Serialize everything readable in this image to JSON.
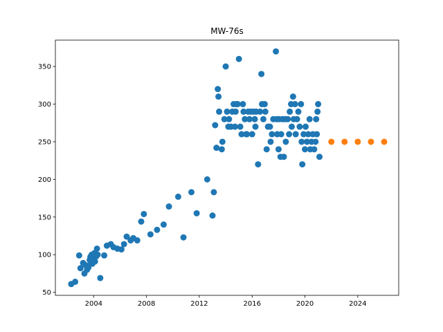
{
  "chart_data": {
    "type": "scatter",
    "title": "MW-76s",
    "xlabel": "",
    "ylabel": "",
    "xlim": [
      2001.1,
      2027.1
    ],
    "ylim": [
      46,
      385
    ],
    "x_ticks": [
      2004,
      2008,
      2012,
      2016,
      2020,
      2024
    ],
    "y_ticks": [
      50,
      100,
      150,
      200,
      250,
      300,
      350
    ],
    "grid": false,
    "legend": "none",
    "series": [
      {
        "color": "#1f77b4",
        "points": [
          [
            2002.3,
            61
          ],
          [
            2002.6,
            64
          ],
          [
            2002.9,
            99
          ],
          [
            2003.0,
            82
          ],
          [
            2003.2,
            89
          ],
          [
            2003.3,
            75
          ],
          [
            2003.4,
            86
          ],
          [
            2003.5,
            80
          ],
          [
            2003.6,
            83
          ],
          [
            2003.7,
            93
          ],
          [
            2003.75,
            97
          ],
          [
            2003.8,
            90
          ],
          [
            2003.85,
            100
          ],
          [
            2003.9,
            88
          ],
          [
            2004.0,
            95
          ],
          [
            2004.05,
            102
          ],
          [
            2004.1,
            91
          ],
          [
            2004.2,
            98
          ],
          [
            2004.25,
            108
          ],
          [
            2004.3,
            100
          ],
          [
            2004.5,
            69
          ],
          [
            2004.8,
            99
          ],
          [
            2005.0,
            112
          ],
          [
            2005.3,
            114
          ],
          [
            2005.5,
            110
          ],
          [
            2005.8,
            108
          ],
          [
            2006.1,
            107
          ],
          [
            2006.3,
            114
          ],
          [
            2006.5,
            124
          ],
          [
            2006.8,
            119
          ],
          [
            2007.0,
            122
          ],
          [
            2007.3,
            119
          ],
          [
            2007.6,
            144
          ],
          [
            2007.8,
            154
          ],
          [
            2008.3,
            127
          ],
          [
            2008.8,
            133
          ],
          [
            2009.3,
            140
          ],
          [
            2009.7,
            164
          ],
          [
            2010.4,
            177
          ],
          [
            2010.8,
            123
          ],
          [
            2011.4,
            183
          ],
          [
            2011.8,
            155
          ],
          [
            2012.6,
            200
          ],
          [
            2013.0,
            152
          ],
          [
            2013.1,
            183
          ],
          [
            2013.2,
            272
          ],
          [
            2013.3,
            242
          ],
          [
            2013.4,
            320
          ],
          [
            2013.45,
            310
          ],
          [
            2013.5,
            290
          ],
          [
            2013.7,
            240
          ],
          [
            2013.75,
            250
          ],
          [
            2013.9,
            280
          ],
          [
            2014.0,
            350
          ],
          [
            2014.1,
            290
          ],
          [
            2014.2,
            270
          ],
          [
            2014.25,
            280
          ],
          [
            2014.4,
            270
          ],
          [
            2014.5,
            290
          ],
          [
            2014.6,
            300
          ],
          [
            2014.7,
            270
          ],
          [
            2014.75,
            290
          ],
          [
            2014.8,
            300
          ],
          [
            2014.9,
            300
          ],
          [
            2015.0,
            360
          ],
          [
            2015.1,
            270
          ],
          [
            2015.2,
            260
          ],
          [
            2015.3,
            300
          ],
          [
            2015.35,
            290
          ],
          [
            2015.45,
            280
          ],
          [
            2015.55,
            260
          ],
          [
            2015.6,
            260
          ],
          [
            2015.7,
            290
          ],
          [
            2015.8,
            280
          ],
          [
            2015.9,
            290
          ],
          [
            2016.0,
            260
          ],
          [
            2016.1,
            290
          ],
          [
            2016.2,
            280
          ],
          [
            2016.25,
            270
          ],
          [
            2016.3,
            290
          ],
          [
            2016.45,
            220
          ],
          [
            2016.6,
            290
          ],
          [
            2016.7,
            340
          ],
          [
            2016.75,
            300
          ],
          [
            2016.85,
            280
          ],
          [
            2016.95,
            300
          ],
          [
            2017.0,
            290
          ],
          [
            2017.1,
            240
          ],
          [
            2017.2,
            270
          ],
          [
            2017.35,
            270
          ],
          [
            2017.4,
            250
          ],
          [
            2017.5,
            260
          ],
          [
            2017.6,
            280
          ],
          [
            2017.8,
            370
          ],
          [
            2017.85,
            280
          ],
          [
            2017.9,
            260
          ],
          [
            2018.0,
            240
          ],
          [
            2018.05,
            280
          ],
          [
            2018.15,
            230
          ],
          [
            2018.2,
            260
          ],
          [
            2018.3,
            280
          ],
          [
            2018.4,
            230
          ],
          [
            2018.5,
            280
          ],
          [
            2018.55,
            250
          ],
          [
            2018.7,
            280
          ],
          [
            2018.8,
            260
          ],
          [
            2018.85,
            290
          ],
          [
            2018.95,
            300
          ],
          [
            2019.0,
            270
          ],
          [
            2019.1,
            310
          ],
          [
            2019.15,
            280
          ],
          [
            2019.25,
            300
          ],
          [
            2019.3,
            260
          ],
          [
            2019.4,
            280
          ],
          [
            2019.5,
            290
          ],
          [
            2019.6,
            270
          ],
          [
            2019.7,
            300
          ],
          [
            2019.75,
            250
          ],
          [
            2019.8,
            220
          ],
          [
            2019.9,
            260
          ],
          [
            2020.0,
            240
          ],
          [
            2020.05,
            270
          ],
          [
            2020.15,
            250
          ],
          [
            2020.25,
            260
          ],
          [
            2020.35,
            280
          ],
          [
            2020.4,
            240
          ],
          [
            2020.5,
            250
          ],
          [
            2020.6,
            260
          ],
          [
            2020.7,
            240
          ],
          [
            2020.8,
            250
          ],
          [
            2020.85,
            280
          ],
          [
            2020.9,
            260
          ],
          [
            2020.95,
            290
          ],
          [
            2021.0,
            300
          ],
          [
            2021.1,
            230
          ]
        ]
      },
      {
        "color": "#ff7f0e",
        "points": [
          [
            2022,
            250
          ],
          [
            2023,
            250
          ],
          [
            2024,
            250
          ],
          [
            2025,
            250
          ],
          [
            2026,
            250
          ]
        ]
      }
    ]
  }
}
